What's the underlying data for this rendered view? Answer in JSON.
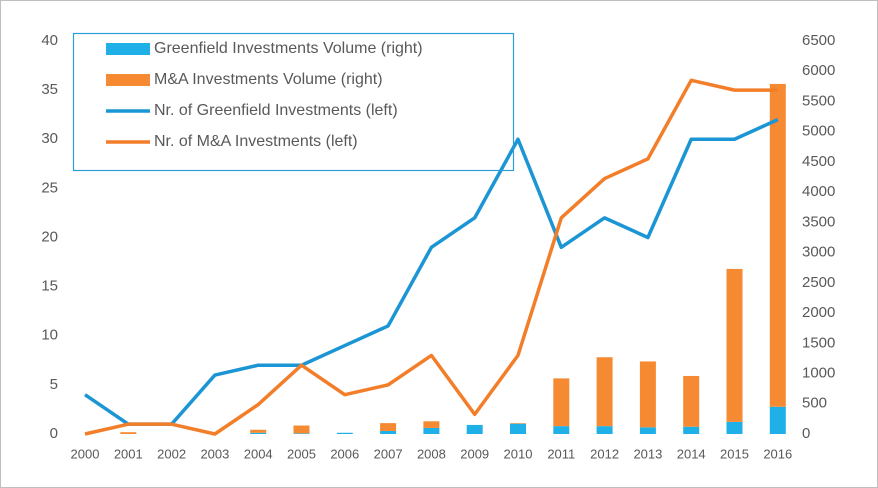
{
  "chart_data": {
    "type": "bar_line",
    "categories": [
      "2000",
      "2001",
      "2002",
      "2003",
      "2004",
      "2005",
      "2006",
      "2007",
      "2008",
      "2009",
      "2010",
      "2011",
      "2012",
      "2013",
      "2014",
      "2015",
      "2016"
    ],
    "series": [
      {
        "name": "Greenfield Investments Volume (right)",
        "kind": "bar",
        "axis": "y2",
        "color": "#1fb0e8",
        "values": [
          0,
          0,
          0,
          0,
          20,
          10,
          20,
          50,
          100,
          150,
          170,
          130,
          130,
          110,
          120,
          200,
          450
        ]
      },
      {
        "name": "M&A Investments Volume (right)",
        "kind": "bar",
        "axis": "y2",
        "color": "#f58a32",
        "values": [
          0,
          30,
          0,
          0,
          50,
          130,
          0,
          130,
          110,
          0,
          10,
          790,
          1140,
          1090,
          840,
          2530,
          5340
        ]
      },
      {
        "name": "Nr. of Greenfield Investments (left)",
        "kind": "line",
        "axis": "y",
        "color": "#1b95d3",
        "values": [
          4,
          1,
          1,
          6,
          7,
          7,
          9,
          11,
          19,
          22,
          30,
          19,
          22,
          20,
          30,
          30,
          32
        ]
      },
      {
        "name": "Nr. of M&A Investments (left)",
        "kind": "line",
        "axis": "y",
        "color": "#f37e2a",
        "values": [
          0,
          1,
          1,
          0,
          3,
          7,
          4,
          5,
          8,
          2,
          8,
          22,
          26,
          28,
          36,
          35,
          35
        ]
      }
    ],
    "ylim": [
      0,
      40
    ],
    "yticks": [
      0,
      5,
      10,
      15,
      20,
      25,
      30,
      35,
      40
    ],
    "y2lim": [
      0,
      6500
    ],
    "y2ticks": [
      0,
      500,
      1000,
      1500,
      2000,
      2500,
      3000,
      3500,
      4000,
      4500,
      5000,
      5500,
      6000,
      6500
    ],
    "legend": "top-left"
  }
}
